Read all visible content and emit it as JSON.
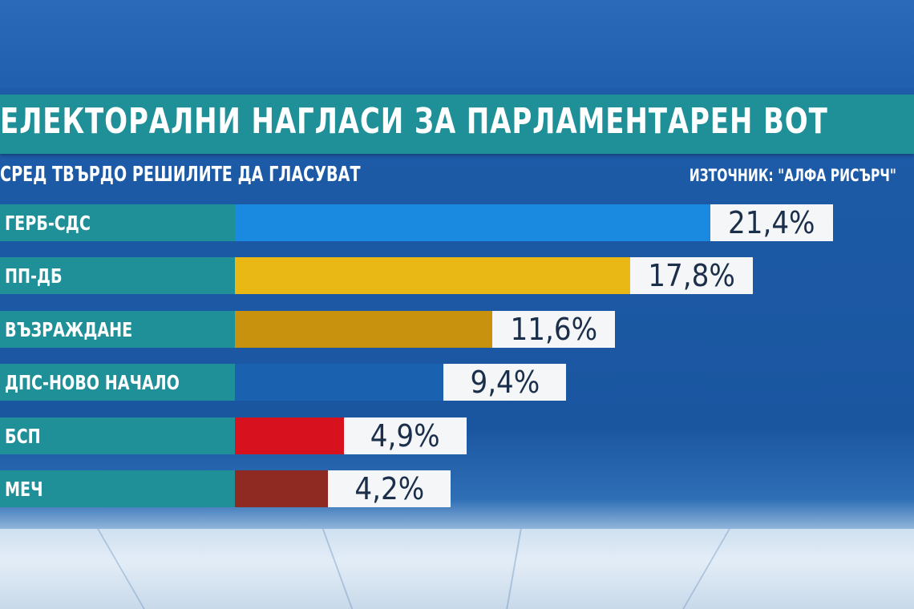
{
  "title": "ЕЛЕКТОРАЛНИ НАГЛАСИ ЗА ПАРЛАМЕНТАРЕН ВОТ",
  "subtitle": "СРЕД ТВЪРДО РЕШИЛИТЕ ДА ГЛАСУВАТ",
  "source": "ИЗТОЧНИК: \"АЛФА РИСЪРЧ\"",
  "chart_data": {
    "type": "bar",
    "orientation": "horizontal",
    "title": "ЕЛЕКТОРАЛНИ НАГЛАСИ ЗА ПАРЛАМЕНТАРЕН ВОТ",
    "subtitle": "СРЕД ТВЪРДО РЕШИЛИТЕ ДА ГЛАСУВАТ",
    "categories": [
      "ГЕРБ-СДС",
      "ПП-ДБ",
      "ВЪЗРАЖДАНЕ",
      "ДПС-НОВО НАЧАЛО",
      "БСП",
      "МЕЧ"
    ],
    "values": [
      21.4,
      17.8,
      11.6,
      9.4,
      4.9,
      4.2
    ],
    "labels": [
      "21,4%",
      "17,8%",
      "11,6%",
      "9,4%",
      "4,9%",
      "4,2%"
    ],
    "colors": [
      "#1a8ae0",
      "#eab814",
      "#c8920e",
      "#1a62b0",
      "#d7121e",
      "#8e2a22"
    ],
    "unit": "%",
    "grid": false
  }
}
